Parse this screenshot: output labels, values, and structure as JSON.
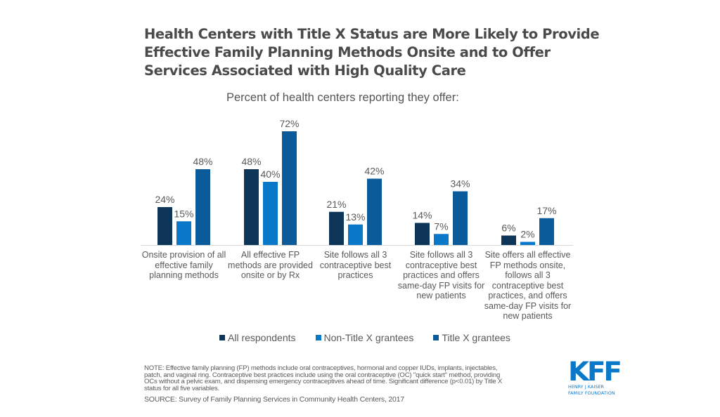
{
  "title_lines": [
    "Health Centers with Title X Status are More Likely to Provide",
    "Effective Family Planning Methods Onsite and to Offer",
    "Services Associated with High Quality Care"
  ],
  "subtitle": "Percent of health centers reporting they offer:",
  "chart_data": {
    "type": "bar",
    "title": "Health Centers with Title X Status are More Likely to Provide Effective Family Planning Methods Onsite and to Offer Services Associated with High Quality Care",
    "subtitle": "Percent of health centers reporting they offer:",
    "categories": [
      "Onsite provision of all effective family planning methods",
      "All effective FP methods are provided onsite or by Rx",
      "Site follows all 3 contraceptive best practices",
      "Site follows all 3 contraceptive best practices and offers same-day FP visits for new patients",
      "Site offers all effective FP methods onsite, follows all 3 contraceptive best practices, and offers same-day FP visits for new patients"
    ],
    "category_label_lines": [
      [
        "Onsite provision of all",
        "effective family",
        "planning methods"
      ],
      [
        "All effective FP",
        "methods are provided",
        "onsite or by Rx"
      ],
      [
        "Site follows all 3",
        "contraceptive best",
        "practices"
      ],
      [
        "Site follows all 3",
        "contraceptive best",
        "practices and offers",
        "same-day FP visits for",
        "new patients"
      ],
      [
        "Site offers all effective",
        "FP methods onsite,",
        "follows all 3",
        "contraceptive best",
        "practices, and offers",
        "same-day FP visits for",
        "new patients"
      ]
    ],
    "series": [
      {
        "name": "All respondents",
        "color": "#0d3558",
        "values": [
          24,
          48,
          21,
          14,
          6
        ]
      },
      {
        "name": "Non-Title X grantees",
        "color": "#0a78c8",
        "values": [
          15,
          40,
          13,
          7,
          2
        ]
      },
      {
        "name": "Title X grantees",
        "color": "#0b5a99",
        "values": [
          48,
          72,
          42,
          34,
          17
        ]
      }
    ],
    "value_suffix": "%",
    "xlabel": "",
    "ylabel": "",
    "ylim": [
      0,
      80
    ],
    "grid": false,
    "legend_position": "bottom"
  },
  "note": "NOTE: Effective family planning (FP) methods include oral contraceptives, hormonal and copper IUDs, implants, injectables, patch, and vaginal ring. Contraceptive best practices include using the oral contraceptive (OC) \"quick start\" method, providing OCs without a pelvic exam, and dispensing emergency contraceptives ahead of time. Significant difference (p<0.01) by Title X status for all five variables.",
  "note_lines": [
    "NOTE: Effective family planning (FP) methods include oral contraceptives, hormonal and copper IUDs, implants, injectables,",
    "patch, and vaginal ring. Contraceptive best practices include using the oral contraceptive (OC) \"quick start\" method, providing",
    "OCs without a pelvic exam, and dispensing emergency contraceptives ahead of time. Significant difference (p<0.01) by Title X",
    "status for all five variables."
  ],
  "source": "SOURCE: Survey of Family Planning Services in Community Health Centers, 2017",
  "logo": {
    "mark": "KFF",
    "line1": "HENRY J KAISER",
    "line2": "FAMILY FOUNDATION"
  }
}
